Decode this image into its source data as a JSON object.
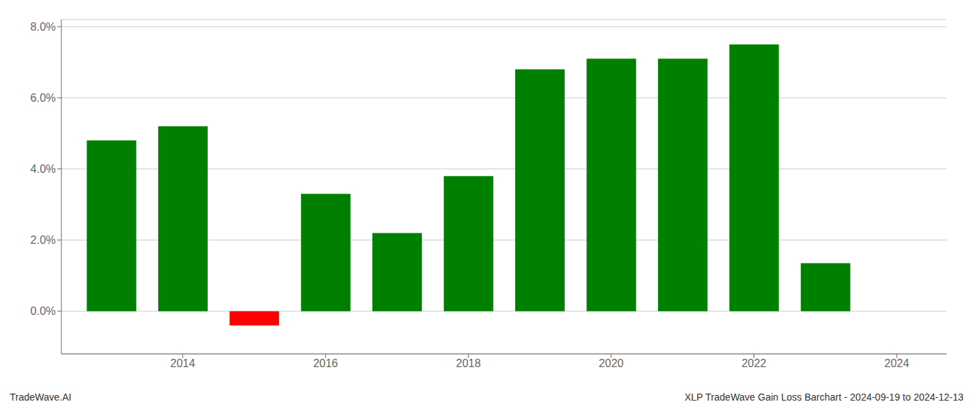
{
  "chart_data": {
    "type": "bar",
    "title": "XLP TradeWave Gain Loss Barchart - 2024-09-19 to 2024-12-13",
    "annotations": [
      "TradeWave.AI"
    ],
    "x": [
      2013,
      2014,
      2015,
      2016,
      2017,
      2018,
      2019,
      2020,
      2021,
      2022,
      2023
    ],
    "values": [
      0.048,
      0.052,
      -0.004,
      0.033,
      0.022,
      0.038,
      0.068,
      0.071,
      0.071,
      0.075,
      0.0135
    ],
    "colors": [
      "#008000",
      "#008000",
      "#ff0000",
      "#008000",
      "#008000",
      "#008000",
      "#008000",
      "#008000",
      "#008000",
      "#008000",
      "#008000"
    ],
    "xlim": [
      2012.3,
      2024.7
    ],
    "xticks": [
      2014,
      2016,
      2018,
      2020,
      2022,
      2024
    ],
    "ylim": [
      -0.012,
      0.082
    ],
    "yticks": [
      {
        "value": 0.0,
        "label": "0.0%"
      },
      {
        "value": 0.02,
        "label": "2.0%"
      },
      {
        "value": 0.04,
        "label": "4.0%"
      },
      {
        "value": 0.06,
        "label": "6.0%"
      },
      {
        "value": 0.08,
        "label": "8.0%"
      }
    ],
    "grid": true
  }
}
